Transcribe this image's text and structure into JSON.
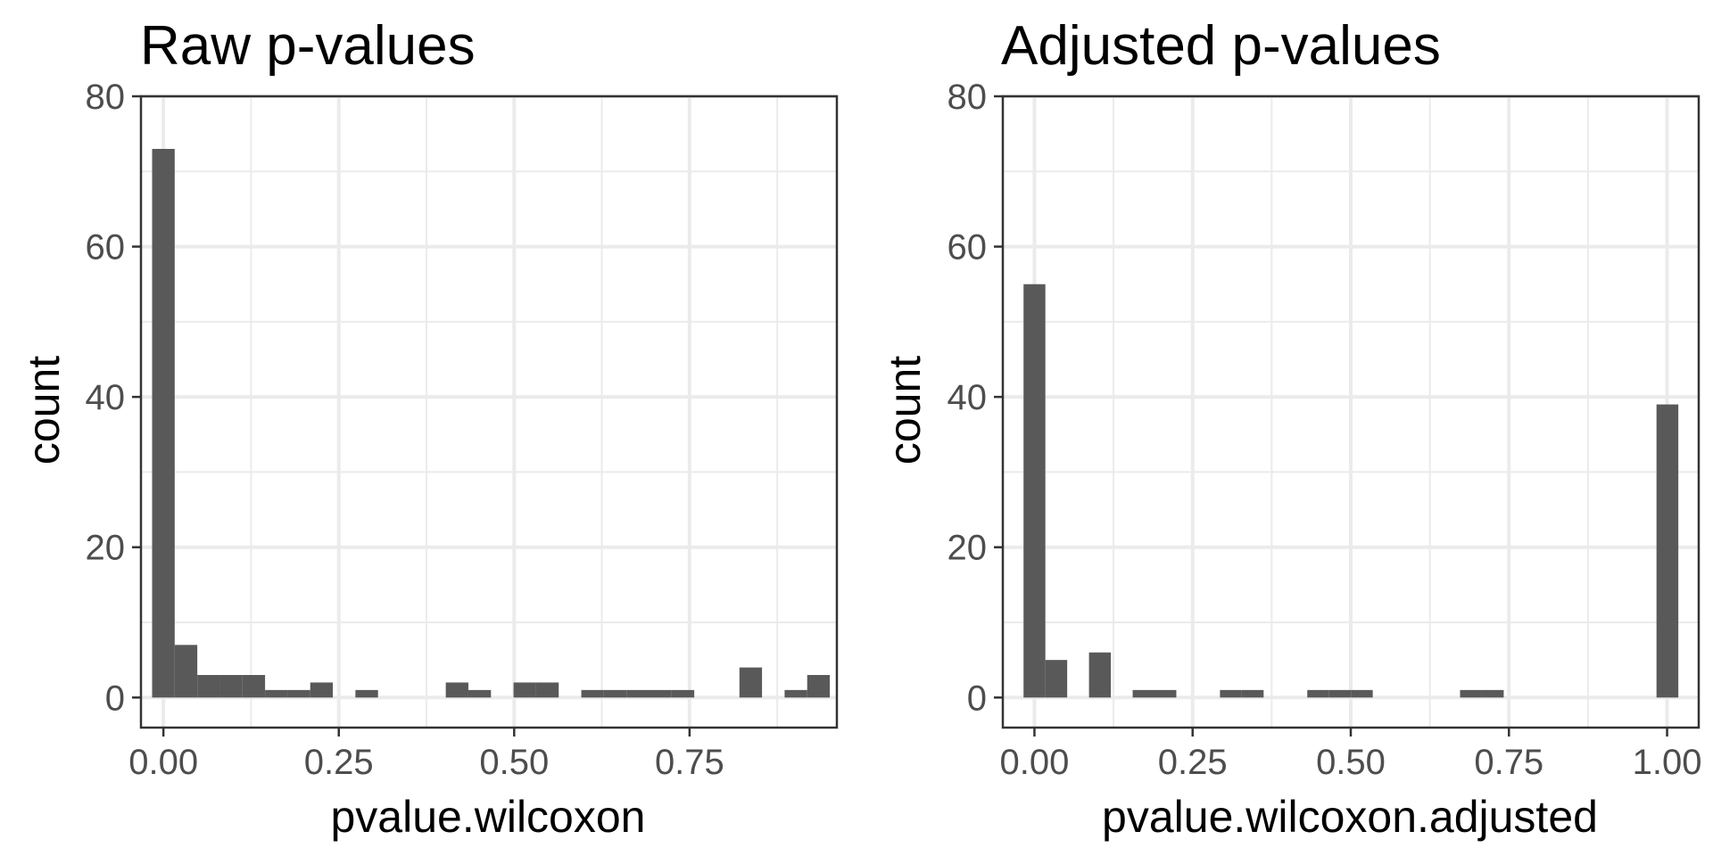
{
  "chart_data": [
    {
      "type": "bar",
      "title": "Raw p-values",
      "xlabel": "pvalue.wilcoxon",
      "ylabel": "count",
      "xlim": [
        -0.032,
        0.96
      ],
      "ylim": [
        -4,
        80
      ],
      "x_ticks": [
        0.0,
        0.25,
        0.5,
        0.75
      ],
      "x_tick_labels": [
        "0.00",
        "0.25",
        "0.50",
        "0.75"
      ],
      "y_ticks": [
        0,
        20,
        40,
        60,
        80
      ],
      "y_tick_labels": [
        "0",
        "20",
        "40",
        "60",
        "80"
      ],
      "bin_width": 0.0322,
      "grid": true,
      "bins": [
        {
          "x": 0.0,
          "count": 73
        },
        {
          "x": 0.0322,
          "count": 7
        },
        {
          "x": 0.0644,
          "count": 3
        },
        {
          "x": 0.0966,
          "count": 3
        },
        {
          "x": 0.1288,
          "count": 3
        },
        {
          "x": 0.161,
          "count": 1
        },
        {
          "x": 0.1932,
          "count": 1
        },
        {
          "x": 0.2254,
          "count": 2
        },
        {
          "x": 0.2576,
          "count": 0
        },
        {
          "x": 0.2898,
          "count": 1
        },
        {
          "x": 0.322,
          "count": 0
        },
        {
          "x": 0.3542,
          "count": 0
        },
        {
          "x": 0.3864,
          "count": 0
        },
        {
          "x": 0.4186,
          "count": 2
        },
        {
          "x": 0.4508,
          "count": 1
        },
        {
          "x": 0.483,
          "count": 0
        },
        {
          "x": 0.5152,
          "count": 2
        },
        {
          "x": 0.5474,
          "count": 2
        },
        {
          "x": 0.5796,
          "count": 0
        },
        {
          "x": 0.6118,
          "count": 1
        },
        {
          "x": 0.644,
          "count": 1
        },
        {
          "x": 0.6762,
          "count": 1
        },
        {
          "x": 0.7084,
          "count": 1
        },
        {
          "x": 0.7406,
          "count": 1
        },
        {
          "x": 0.7728,
          "count": 0
        },
        {
          "x": 0.805,
          "count": 0
        },
        {
          "x": 0.8372,
          "count": 4
        },
        {
          "x": 0.8694,
          "count": 0
        },
        {
          "x": 0.9016,
          "count": 1
        },
        {
          "x": 0.9338,
          "count": 3
        }
      ]
    },
    {
      "type": "bar",
      "title": "Adjusted p-values",
      "xlabel": "pvalue.wilcoxon.adjusted",
      "ylabel": "count",
      "xlim": [
        -0.05,
        1.05
      ],
      "ylim": [
        -4,
        80
      ],
      "x_ticks": [
        0.0,
        0.25,
        0.5,
        0.75,
        1.0
      ],
      "x_tick_labels": [
        "0.00",
        "0.25",
        "0.50",
        "0.75",
        "1.00"
      ],
      "y_ticks": [
        0,
        20,
        40,
        60,
        80
      ],
      "y_tick_labels": [
        "0",
        "20",
        "40",
        "60",
        "80"
      ],
      "bin_width": 0.0345,
      "grid": true,
      "bins": [
        {
          "x": 0.0,
          "count": 55
        },
        {
          "x": 0.0345,
          "count": 5
        },
        {
          "x": 0.069,
          "count": 0
        },
        {
          "x": 0.1035,
          "count": 6
        },
        {
          "x": 0.138,
          "count": 0
        },
        {
          "x": 0.1725,
          "count": 1
        },
        {
          "x": 0.207,
          "count": 1
        },
        {
          "x": 0.2415,
          "count": 0
        },
        {
          "x": 0.276,
          "count": 0
        },
        {
          "x": 0.3105,
          "count": 1
        },
        {
          "x": 0.345,
          "count": 1
        },
        {
          "x": 0.3795,
          "count": 0
        },
        {
          "x": 0.414,
          "count": 0
        },
        {
          "x": 0.4485,
          "count": 1
        },
        {
          "x": 0.483,
          "count": 1
        },
        {
          "x": 0.5175,
          "count": 1
        },
        {
          "x": 0.552,
          "count": 0
        },
        {
          "x": 0.5865,
          "count": 0
        },
        {
          "x": 0.621,
          "count": 0
        },
        {
          "x": 0.6555,
          "count": 0
        },
        {
          "x": 0.69,
          "count": 1
        },
        {
          "x": 0.7245,
          "count": 1
        },
        {
          "x": 0.759,
          "count": 0
        },
        {
          "x": 0.7935,
          "count": 0
        },
        {
          "x": 0.828,
          "count": 0
        },
        {
          "x": 0.8625,
          "count": 0
        },
        {
          "x": 0.897,
          "count": 0
        },
        {
          "x": 0.9315,
          "count": 0
        },
        {
          "x": 0.966,
          "count": 0
        },
        {
          "x": 1.0005,
          "count": 39
        }
      ]
    }
  ]
}
